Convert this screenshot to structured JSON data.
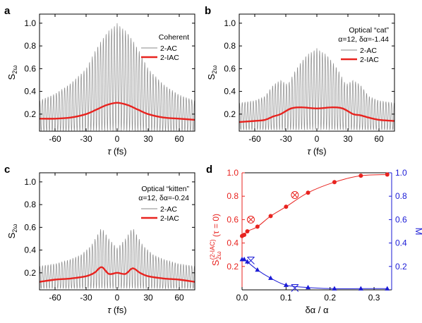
{
  "figure": {
    "panels": [
      {
        "id": "a",
        "letter": "a",
        "legend_title": [
          "Coherent"
        ],
        "legend": [
          "2-AC",
          "2-IAC"
        ],
        "ylabel": "S₂ω",
        "xlabel": "τ (fs)"
      },
      {
        "id": "b",
        "letter": "b",
        "legend_title": [
          "Optical “cat”",
          "α=12, δα=-1.44"
        ],
        "legend": [
          "2-AC",
          "2-IAC"
        ],
        "ylabel": "S₂ω",
        "xlabel": "τ (fs)"
      },
      {
        "id": "c",
        "letter": "c",
        "legend_title": [
          "Optical “kitten”",
          "α=12, δα=-0.24"
        ],
        "legend": [
          "2-AC",
          "2-IAC"
        ],
        "ylabel": "S₂ω",
        "xlabel": "τ (fs)"
      },
      {
        "id": "d",
        "letter": "d",
        "ylabel_left": "S₂ω⁽²⁻ᴵᴬᶜ⁾ (τ = 0)",
        "ylabel_right": "M",
        "xlabel": "δα / α"
      }
    ],
    "colors": {
      "ac": "#8a8a8a",
      "iac": "#e8231f",
      "right_axis": "#1a1ad6",
      "axis": "#000000"
    }
  },
  "chart_data": [
    {
      "panel": "a",
      "type": "line",
      "xlim": [
        -75,
        75
      ],
      "ylim": [
        0.05,
        1.08
      ],
      "xticks": [
        -60,
        -30,
        0,
        30,
        60
      ],
      "yticks": [
        0.2,
        0.4,
        0.6,
        0.8,
        1.0
      ],
      "xticklabels": [
        "-60",
        "-30",
        "0",
        "30",
        "60"
      ],
      "yticklabels": [
        "0.2",
        "0.4",
        "0.6",
        "0.8",
        "1.0"
      ],
      "series": [
        {
          "name": "2-AC",
          "kind": "oscillating",
          "period_fs": 2.67,
          "min": 0.05,
          "envelope": [
            [
              -75,
              0.32
            ],
            [
              -60,
              0.38
            ],
            [
              -45,
              0.47
            ],
            [
              -30,
              0.6
            ],
            [
              -20,
              0.78
            ],
            [
              -10,
              0.92
            ],
            [
              0,
              1.0
            ],
            [
              10,
              0.92
            ],
            [
              20,
              0.78
            ],
            [
              30,
              0.6
            ],
            [
              45,
              0.46
            ],
            [
              60,
              0.37
            ],
            [
              75,
              0.32
            ]
          ]
        },
        {
          "name": "2-IAC",
          "kind": "smooth",
          "x": [
            -75,
            -60,
            -45,
            -30,
            -20,
            -10,
            0,
            10,
            20,
            30,
            45,
            60,
            75
          ],
          "y": [
            0.16,
            0.16,
            0.17,
            0.2,
            0.24,
            0.28,
            0.3,
            0.28,
            0.24,
            0.2,
            0.17,
            0.16,
            0.15
          ]
        }
      ]
    },
    {
      "panel": "b",
      "type": "line",
      "xlim": [
        -75,
        75
      ],
      "ylim": [
        0.05,
        1.08
      ],
      "xticks": [
        -60,
        -30,
        0,
        30,
        60
      ],
      "yticks": [
        0.2,
        0.4,
        0.6,
        0.8,
        1.0
      ],
      "xticklabels": [
        "-60",
        "-30",
        "0",
        "30",
        "60"
      ],
      "yticklabels": [
        "0.2",
        "0.4",
        "0.6",
        "0.8",
        "1.0"
      ],
      "series": [
        {
          "name": "2-AC",
          "kind": "oscillating",
          "period_fs": 2.67,
          "min": 0.06,
          "envelope": [
            [
              -75,
              0.3
            ],
            [
              -60,
              0.32
            ],
            [
              -50,
              0.36
            ],
            [
              -42,
              0.46
            ],
            [
              -35,
              0.5
            ],
            [
              -28,
              0.46
            ],
            [
              -20,
              0.6
            ],
            [
              -10,
              0.72
            ],
            [
              0,
              0.78
            ],
            [
              10,
              0.72
            ],
            [
              20,
              0.6
            ],
            [
              28,
              0.46
            ],
            [
              35,
              0.5
            ],
            [
              42,
              0.46
            ],
            [
              50,
              0.36
            ],
            [
              60,
              0.32
            ],
            [
              75,
              0.3
            ]
          ]
        },
        {
          "name": "2-IAC",
          "kind": "smooth",
          "x": [
            -75,
            -60,
            -50,
            -42,
            -35,
            -25,
            -15,
            0,
            15,
            25,
            35,
            42,
            50,
            60,
            75
          ],
          "y": [
            0.13,
            0.14,
            0.15,
            0.18,
            0.2,
            0.25,
            0.26,
            0.25,
            0.26,
            0.25,
            0.2,
            0.19,
            0.17,
            0.15,
            0.14
          ]
        }
      ]
    },
    {
      "panel": "c",
      "type": "line",
      "xlim": [
        -75,
        75
      ],
      "ylim": [
        0.05,
        1.08
      ],
      "xticks": [
        -60,
        -30,
        0,
        30,
        60
      ],
      "yticks": [
        0.2,
        0.4,
        0.6,
        0.8,
        1.0
      ],
      "xticklabels": [
        "-60",
        "-30",
        "0",
        "30",
        "60"
      ],
      "yticklabels": [
        "0.2",
        "0.4",
        "0.6",
        "0.8",
        "1.0"
      ],
      "series": [
        {
          "name": "2-AC",
          "kind": "oscillating",
          "period_fs": 2.67,
          "min": 0.06,
          "envelope": [
            [
              -75,
              0.26
            ],
            [
              -60,
              0.28
            ],
            [
              -45,
              0.32
            ],
            [
              -35,
              0.36
            ],
            [
              -25,
              0.44
            ],
            [
              -15,
              0.6
            ],
            [
              -8,
              0.5
            ],
            [
              0,
              0.42
            ],
            [
              8,
              0.5
            ],
            [
              15,
              0.6
            ],
            [
              25,
              0.44
            ],
            [
              35,
              0.36
            ],
            [
              45,
              0.32
            ],
            [
              60,
              0.28
            ],
            [
              75,
              0.26
            ]
          ]
        },
        {
          "name": "2-IAC",
          "kind": "smooth",
          "x": [
            -75,
            -60,
            -45,
            -30,
            -22,
            -15,
            -8,
            0,
            8,
            15,
            22,
            30,
            45,
            60,
            75
          ],
          "y": [
            0.12,
            0.14,
            0.15,
            0.17,
            0.2,
            0.25,
            0.19,
            0.2,
            0.19,
            0.24,
            0.2,
            0.17,
            0.15,
            0.14,
            0.12
          ]
        }
      ]
    },
    {
      "panel": "d",
      "type": "scatter",
      "xlim": [
        0,
        0.34
      ],
      "ylim_left": [
        0,
        1.0
      ],
      "ylim_right": [
        0,
        1.0
      ],
      "xticks": [
        0.0,
        0.1,
        0.2,
        0.3
      ],
      "xticklabels": [
        "0.0",
        "0.1",
        "0.2",
        "0.3"
      ],
      "yticks_left": [
        0.2,
        0.4,
        0.6,
        0.8,
        1.0
      ],
      "yticklabels_left": [
        "0.2",
        "0.4",
        "0.6",
        "0.8",
        "1.0"
      ],
      "yticks_right": [
        0.2,
        0.4,
        0.6,
        0.8,
        1.0
      ],
      "yticklabels_right": [
        "0.2",
        "0.4",
        "0.6",
        "0.8",
        "1.0"
      ],
      "series": [
        {
          "name": "S2IAC",
          "axis": "left",
          "marker": "circle",
          "x": [
            0.0,
            0.005,
            0.012,
            0.035,
            0.065,
            0.1,
            0.15,
            0.21,
            0.27,
            0.33
          ],
          "y": [
            0.46,
            0.47,
            0.5,
            0.54,
            0.63,
            0.71,
            0.83,
            0.92,
            0.975,
            0.985
          ]
        },
        {
          "name": "S2IAC-special",
          "axis": "left",
          "marker": "crossed-circle",
          "x": [
            0.02,
            0.12
          ],
          "y": [
            0.6,
            0.81
          ]
        },
        {
          "name": "M",
          "axis": "right",
          "marker": "triangle",
          "x": [
            0.0,
            0.005,
            0.012,
            0.035,
            0.065,
            0.1,
            0.15,
            0.21,
            0.27,
            0.33
          ],
          "y": [
            0.26,
            0.26,
            0.24,
            0.17,
            0.1,
            0.04,
            0.02,
            0.01,
            0.01,
            0.01
          ]
        },
        {
          "name": "M-special",
          "axis": "right",
          "marker": "cross",
          "x": [
            0.02,
            0.12
          ],
          "y": [
            0.25,
            0.015
          ]
        }
      ]
    }
  ]
}
